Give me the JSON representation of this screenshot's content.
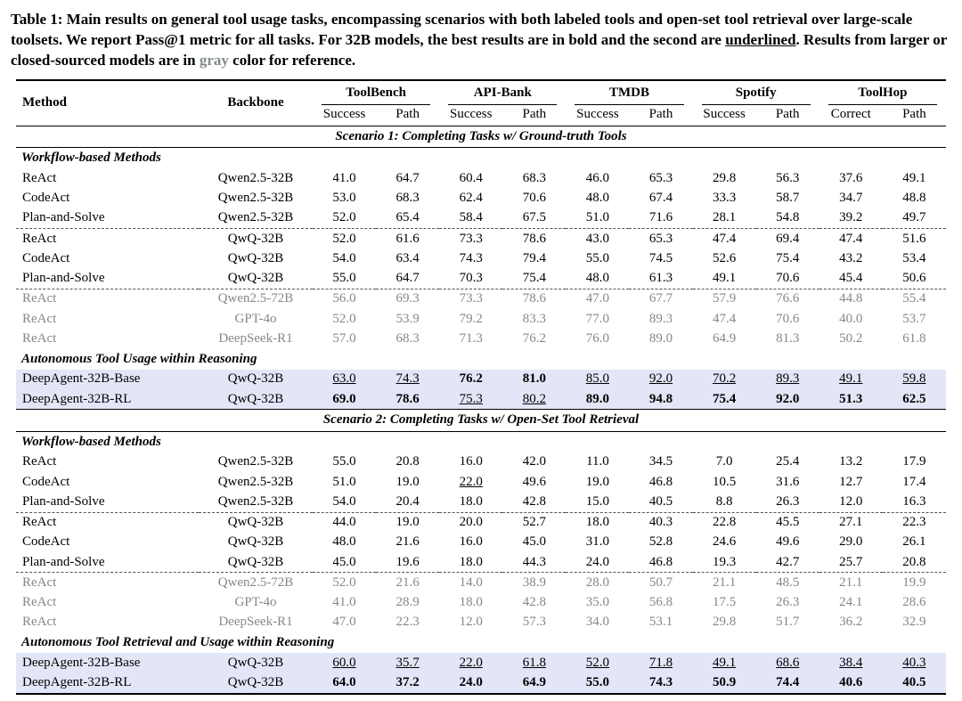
{
  "colors": {
    "highlight_row": "#e3e6f7",
    "reference_gray": "#878787",
    "caption_gray": "#7f8c8c"
  },
  "caption": {
    "parts": [
      {
        "style": "b",
        "text": "Table 1: Main results on general tool usage tasks, encompassing scenarios with both labeled tools and open-set tool retrieval over large-scale toolsets. We report Pass@1 metric for all tasks. For 32B models, the best results are in bold and the second are "
      },
      {
        "style": "bu",
        "text": "underlined"
      },
      {
        "style": "b",
        "text": ". Results from larger or closed-sourced models are in "
      },
      {
        "style": "bg",
        "text": "gray"
      },
      {
        "style": "b",
        "text": " color for reference."
      }
    ]
  },
  "table": {
    "col_headers": {
      "method": "Method",
      "backbone": "Backbone",
      "groups": [
        {
          "label": "ToolBench",
          "sub": [
            "Success",
            "Path"
          ]
        },
        {
          "label": "API-Bank",
          "sub": [
            "Success",
            "Path"
          ]
        },
        {
          "label": "TMDB",
          "sub": [
            "Success",
            "Path"
          ]
        },
        {
          "label": "Spotify",
          "sub": [
            "Success",
            "Path"
          ]
        },
        {
          "label": "ToolHop",
          "sub": [
            "Correct",
            "Path"
          ]
        }
      ]
    },
    "sections": [
      {
        "scenario": "Scenario 1: Completing Tasks w/ Ground-truth Tools",
        "groups": [
          {
            "header": "Workflow-based Methods",
            "rows": [
              {
                "method": "ReAct",
                "backbone": "Qwen2.5-32B",
                "cells": [
                  "41.0",
                  "64.7",
                  "60.4",
                  "68.3",
                  "46.0",
                  "65.3",
                  "29.8",
                  "56.3",
                  "37.6",
                  "49.1"
                ]
              },
              {
                "method": "CodeAct",
                "backbone": "Qwen2.5-32B",
                "cells": [
                  "53.0",
                  "68.3",
                  "62.4",
                  "70.6",
                  "48.0",
                  "67.4",
                  "33.3",
                  "58.7",
                  "34.7",
                  "48.8"
                ]
              },
              {
                "method": "Plan-and-Solve",
                "backbone": "Qwen2.5-32B",
                "cells": [
                  "52.0",
                  "65.4",
                  "58.4",
                  "67.5",
                  "51.0",
                  "71.6",
                  "28.1",
                  "54.8",
                  "39.2",
                  "49.7"
                ]
              },
              {
                "method": "ReAct",
                "backbone": "QwQ-32B",
                "rule_before": "dashed",
                "cells": [
                  "52.0",
                  "61.6",
                  "73.3",
                  "78.6",
                  "43.0",
                  "65.3",
                  "47.4",
                  "69.4",
                  "47.4",
                  "51.6"
                ]
              },
              {
                "method": "CodeAct",
                "backbone": "QwQ-32B",
                "cells": [
                  "54.0",
                  "63.4",
                  "74.3",
                  "79.4",
                  "55.0",
                  "74.5",
                  "52.6",
                  "75.4",
                  "43.2",
                  "53.4"
                ]
              },
              {
                "method": "Plan-and-Solve",
                "backbone": "QwQ-32B",
                "cells": [
                  "55.0",
                  "64.7",
                  "70.3",
                  "75.4",
                  "48.0",
                  "61.3",
                  "49.1",
                  "70.6",
                  "45.4",
                  "50.6"
                ]
              },
              {
                "method": "ReAct",
                "backbone": "Qwen2.5-72B",
                "color": "gray",
                "rule_before": "dashed",
                "cells": [
                  "56.0",
                  "69.3",
                  "73.3",
                  "78.6",
                  "47.0",
                  "67.7",
                  "57.9",
                  "76.6",
                  "44.8",
                  "55.4"
                ]
              },
              {
                "method": "ReAct",
                "backbone": "GPT-4o",
                "color": "gray",
                "cells": [
                  "52.0",
                  "53.9",
                  "79.2",
                  "83.3",
                  "77.0",
                  "89.3",
                  "47.4",
                  "70.6",
                  "40.0",
                  "53.7"
                ]
              },
              {
                "method": "ReAct",
                "backbone": "DeepSeek-R1",
                "color": "gray",
                "cells": [
                  "57.0",
                  "68.3",
                  "71.3",
                  "76.2",
                  "76.0",
                  "89.0",
                  "64.9",
                  "81.3",
                  "50.2",
                  "61.8"
                ]
              }
            ]
          },
          {
            "header": "Autonomous Tool Usage within Reasoning",
            "rows": [
              {
                "method": "DeepAgent-32B-Base",
                "backbone": "QwQ-32B",
                "highlight": true,
                "cells": [
                  "63.0",
                  "74.3",
                  "76.2",
                  "81.0",
                  "85.0",
                  "92.0",
                  "70.2",
                  "89.3",
                  "49.1",
                  "59.8"
                ],
                "fmts": [
                  "u",
                  "u",
                  "b",
                  "b",
                  "u",
                  "u",
                  "u",
                  "u",
                  "u",
                  "u"
                ]
              },
              {
                "method": "DeepAgent-32B-RL",
                "backbone": "QwQ-32B",
                "highlight": true,
                "cells": [
                  "69.0",
                  "78.6",
                  "75.3",
                  "80.2",
                  "89.0",
                  "94.8",
                  "75.4",
                  "92.0",
                  "51.3",
                  "62.5"
                ],
                "fmts": [
                  "b",
                  "b",
                  "u",
                  "u",
                  "b",
                  "b",
                  "b",
                  "b",
                  "b",
                  "b"
                ]
              }
            ]
          }
        ]
      },
      {
        "scenario": "Scenario 2: Completing Tasks w/ Open-Set Tool Retrieval",
        "groups": [
          {
            "header": "Workflow-based Methods",
            "rows": [
              {
                "method": "ReAct",
                "backbone": "Qwen2.5-32B",
                "cells": [
                  "55.0",
                  "20.8",
                  "16.0",
                  "42.0",
                  "11.0",
                  "34.5",
                  "7.0",
                  "25.4",
                  "13.2",
                  "17.9"
                ]
              },
              {
                "method": "CodeAct",
                "backbone": "Qwen2.5-32B",
                "cells": [
                  "51.0",
                  "19.0",
                  "22.0",
                  "49.6",
                  "19.0",
                  "46.8",
                  "10.5",
                  "31.6",
                  "12.7",
                  "17.4"
                ],
                "fmts": [
                  "n",
                  "n",
                  "u",
                  "n",
                  "n",
                  "n",
                  "n",
                  "n",
                  "n",
                  "n"
                ]
              },
              {
                "method": "Plan-and-Solve",
                "backbone": "Qwen2.5-32B",
                "cells": [
                  "54.0",
                  "20.4",
                  "18.0",
                  "42.8",
                  "15.0",
                  "40.5",
                  "8.8",
                  "26.3",
                  "12.0",
                  "16.3"
                ]
              },
              {
                "method": "ReAct",
                "backbone": "QwQ-32B",
                "rule_before": "dashed",
                "cells": [
                  "44.0",
                  "19.0",
                  "20.0",
                  "52.7",
                  "18.0",
                  "40.3",
                  "22.8",
                  "45.5",
                  "27.1",
                  "22.3"
                ]
              },
              {
                "method": "CodeAct",
                "backbone": "QwQ-32B",
                "cells": [
                  "48.0",
                  "21.6",
                  "16.0",
                  "45.0",
                  "31.0",
                  "52.8",
                  "24.6",
                  "49.6",
                  "29.0",
                  "26.1"
                ]
              },
              {
                "method": "Plan-and-Solve",
                "backbone": "QwQ-32B",
                "cells": [
                  "45.0",
                  "19.6",
                  "18.0",
                  "44.3",
                  "24.0",
                  "46.8",
                  "19.3",
                  "42.7",
                  "25.7",
                  "20.8"
                ]
              },
              {
                "method": "ReAct",
                "backbone": "Qwen2.5-72B",
                "color": "gray",
                "rule_before": "dashed",
                "cells": [
                  "52.0",
                  "21.6",
                  "14.0",
                  "38.9",
                  "28.0",
                  "50.7",
                  "21.1",
                  "48.5",
                  "21.1",
                  "19.9"
                ]
              },
              {
                "method": "ReAct",
                "backbone": "GPT-4o",
                "color": "gray",
                "cells": [
                  "41.0",
                  "28.9",
                  "18.0",
                  "42.8",
                  "35.0",
                  "56.8",
                  "17.5",
                  "26.3",
                  "24.1",
                  "28.6"
                ]
              },
              {
                "method": "ReAct",
                "backbone": "DeepSeek-R1",
                "color": "gray",
                "cells": [
                  "47.0",
                  "22.3",
                  "12.0",
                  "57.3",
                  "34.0",
                  "53.1",
                  "29.8",
                  "51.7",
                  "36.2",
                  "32.9"
                ]
              }
            ]
          },
          {
            "header": "Autonomous Tool Retrieval and Usage within Reasoning",
            "rows": [
              {
                "method": "DeepAgent-32B-Base",
                "backbone": "QwQ-32B",
                "highlight": true,
                "cells": [
                  "60.0",
                  "35.7",
                  "22.0",
                  "61.8",
                  "52.0",
                  "71.8",
                  "49.1",
                  "68.6",
                  "38.4",
                  "40.3"
                ],
                "fmts": [
                  "u",
                  "u",
                  "u",
                  "u",
                  "u",
                  "u",
                  "u",
                  "u",
                  "u",
                  "u"
                ]
              },
              {
                "method": "DeepAgent-32B-RL",
                "backbone": "QwQ-32B",
                "highlight": true,
                "cells": [
                  "64.0",
                  "37.2",
                  "24.0",
                  "64.9",
                  "55.0",
                  "74.3",
                  "50.9",
                  "74.4",
                  "40.6",
                  "40.5"
                ],
                "fmts": [
                  "b",
                  "b",
                  "b",
                  "b",
                  "b",
                  "b",
                  "b",
                  "b",
                  "b",
                  "b"
                ]
              }
            ]
          }
        ]
      }
    ]
  }
}
